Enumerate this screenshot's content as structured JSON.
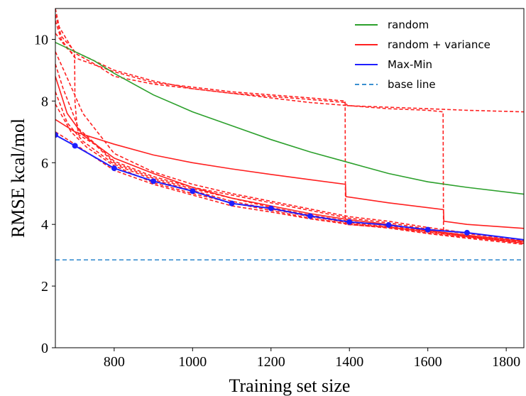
{
  "chart_data": {
    "type": "line",
    "xlabel": "Training set size",
    "ylabel": "RMSE kcal/mol",
    "xlim": [
      650,
      1845
    ],
    "ylim": [
      0,
      11
    ],
    "xticks": [
      800,
      1000,
      1200,
      1400,
      1600,
      1800
    ],
    "yticks": [
      0,
      2,
      4,
      6,
      8,
      10
    ],
    "grid": false,
    "legend_position": "top-right",
    "legend": [
      {
        "label": "random",
        "color": "#2ca02c",
        "style": "solid"
      },
      {
        "label": "random + variance",
        "color": "#ff2020",
        "style": "solid"
      },
      {
        "label": "Max-Min",
        "color": "#1f1fff",
        "style": "solid"
      },
      {
        "label": "base line",
        "color": "#3a8fd0",
        "style": "dashed"
      }
    ],
    "series": [
      {
        "name": "random",
        "color": "#2ca02c",
        "style": "solid",
        "points": [
          [
            650,
            9.9
          ],
          [
            700,
            9.6
          ],
          [
            750,
            9.3
          ],
          [
            800,
            8.9
          ],
          [
            900,
            8.2
          ],
          [
            1000,
            7.65
          ],
          [
            1100,
            7.2
          ],
          [
            1200,
            6.75
          ],
          [
            1300,
            6.35
          ],
          [
            1400,
            6.0
          ],
          [
            1500,
            5.65
          ],
          [
            1600,
            5.38
          ],
          [
            1700,
            5.2
          ],
          [
            1845,
            4.98
          ]
        ]
      },
      {
        "name": "random + variance",
        "color": "#ff2020",
        "style": "solid",
        "points": [
          [
            650,
            7.4
          ],
          [
            700,
            7.0
          ],
          [
            800,
            6.6
          ],
          [
            900,
            6.25
          ],
          [
            1000,
            6.0
          ],
          [
            1100,
            5.8
          ],
          [
            1200,
            5.62
          ],
          [
            1300,
            5.45
          ],
          [
            1390,
            5.3
          ],
          [
            1391,
            4.9
          ],
          [
            1500,
            4.7
          ],
          [
            1640,
            4.48
          ],
          [
            1641,
            4.1
          ],
          [
            1700,
            4.0
          ],
          [
            1845,
            3.87
          ]
        ]
      },
      {
        "name": "random + variance",
        "color": "#ff2020",
        "style": "solid",
        "points": [
          [
            650,
            8.8
          ],
          [
            680,
            7.6
          ],
          [
            720,
            6.9
          ],
          [
            800,
            6.15
          ],
          [
            900,
            5.65
          ],
          [
            1000,
            5.2
          ],
          [
            1100,
            4.85
          ],
          [
            1200,
            4.6
          ],
          [
            1300,
            4.35
          ],
          [
            1400,
            4.15
          ],
          [
            1500,
            4.0
          ],
          [
            1600,
            3.8
          ],
          [
            1700,
            3.65
          ],
          [
            1845,
            3.45
          ]
        ]
      },
      {
        "name": "Max-Min",
        "color": "#1f1fff",
        "style": "solid",
        "markers": true,
        "points": [
          [
            650,
            6.9
          ],
          [
            700,
            6.55
          ],
          [
            800,
            5.82
          ],
          [
            900,
            5.4
          ],
          [
            1000,
            5.08
          ],
          [
            1100,
            4.68
          ],
          [
            1200,
            4.52
          ],
          [
            1300,
            4.27
          ],
          [
            1400,
            4.08
          ],
          [
            1500,
            3.98
          ],
          [
            1600,
            3.83
          ],
          [
            1700,
            3.73
          ],
          [
            1845,
            3.5
          ]
        ],
        "marker_points": [
          [
            650,
            6.9
          ],
          [
            700,
            6.55
          ],
          [
            800,
            5.82
          ],
          [
            900,
            5.4
          ],
          [
            1000,
            5.08
          ],
          [
            1100,
            4.68
          ],
          [
            1200,
            4.52
          ],
          [
            1300,
            4.27
          ],
          [
            1400,
            4.08
          ],
          [
            1500,
            3.98
          ],
          [
            1600,
            3.83
          ],
          [
            1700,
            3.73
          ]
        ]
      },
      {
        "name": "base line",
        "color": "#3a8fd0",
        "style": "dashed",
        "points": [
          [
            650,
            2.85
          ],
          [
            1845,
            2.85
          ]
        ]
      },
      {
        "name": "random + variance",
        "color": "#ff2020",
        "style": "dashed",
        "points": [
          [
            650,
            11.0
          ],
          [
            660,
            10.4
          ],
          [
            700,
            9.55
          ],
          [
            750,
            9.2
          ],
          [
            800,
            8.8
          ],
          [
            900,
            8.55
          ],
          [
            1000,
            8.4
          ],
          [
            1100,
            8.25
          ],
          [
            1200,
            8.15
          ],
          [
            1300,
            8.05
          ],
          [
            1390,
            7.95
          ],
          [
            1395,
            7.85
          ],
          [
            1500,
            7.8
          ],
          [
            1600,
            7.75
          ],
          [
            1700,
            7.7
          ],
          [
            1845,
            7.65
          ]
        ]
      },
      {
        "name": "random + variance",
        "color": "#ff2020",
        "style": "dashed",
        "points": [
          [
            650,
            10.6
          ],
          [
            665,
            10.0
          ],
          [
            700,
            9.4
          ],
          [
            800,
            8.95
          ],
          [
            900,
            8.6
          ],
          [
            1000,
            8.45
          ],
          [
            1100,
            8.3
          ],
          [
            1200,
            8.2
          ],
          [
            1300,
            8.1
          ],
          [
            1389,
            8.0
          ],
          [
            1390,
            4.0
          ],
          [
            1500,
            3.9
          ],
          [
            1600,
            3.78
          ],
          [
            1700,
            3.62
          ],
          [
            1845,
            3.45
          ]
        ]
      },
      {
        "name": "random + variance",
        "color": "#ff2020",
        "style": "dashed",
        "points": [
          [
            650,
            10.8
          ],
          [
            665,
            10.1
          ],
          [
            700,
            9.6
          ],
          [
            800,
            9.0
          ],
          [
            900,
            8.65
          ],
          [
            1000,
            8.4
          ],
          [
            1100,
            8.25
          ],
          [
            1200,
            8.1
          ],
          [
            1300,
            7.95
          ],
          [
            1400,
            7.85
          ],
          [
            1500,
            7.75
          ],
          [
            1600,
            7.7
          ],
          [
            1639,
            7.65
          ],
          [
            1640,
            3.72
          ],
          [
            1700,
            3.62
          ],
          [
            1845,
            3.4
          ]
        ]
      },
      {
        "name": "random + variance",
        "color": "#ff2020",
        "style": "dashed",
        "points": [
          [
            650,
            10.2
          ],
          [
            680,
            9.7
          ],
          [
            699,
            9.5
          ],
          [
            700,
            8.0
          ],
          [
            705,
            7.2
          ],
          [
            710,
            6.9
          ],
          [
            750,
            6.6
          ],
          [
            800,
            6.0
          ],
          [
            900,
            5.5
          ],
          [
            1000,
            5.15
          ],
          [
            1100,
            4.85
          ],
          [
            1200,
            4.55
          ],
          [
            1300,
            4.3
          ],
          [
            1400,
            4.1
          ],
          [
            1500,
            3.95
          ],
          [
            1600,
            3.78
          ],
          [
            1700,
            3.62
          ],
          [
            1845,
            3.42
          ]
        ]
      },
      {
        "name": "random + variance",
        "color": "#ff2020",
        "style": "dashed",
        "points": [
          [
            650,
            9.2
          ],
          [
            670,
            8.4
          ],
          [
            710,
            7.1
          ],
          [
            800,
            6.05
          ],
          [
            900,
            5.55
          ],
          [
            1000,
            5.2
          ],
          [
            1100,
            4.95
          ],
          [
            1200,
            4.7
          ],
          [
            1300,
            4.45
          ],
          [
            1400,
            4.2
          ],
          [
            1500,
            4.05
          ],
          [
            1600,
            3.85
          ],
          [
            1700,
            3.7
          ],
          [
            1845,
            3.48
          ]
        ]
      },
      {
        "name": "random + variance",
        "color": "#ff2020",
        "style": "dashed",
        "points": [
          [
            650,
            8.3
          ],
          [
            680,
            7.3
          ],
          [
            720,
            6.7
          ],
          [
            800,
            5.95
          ],
          [
            900,
            5.45
          ],
          [
            1000,
            5.1
          ],
          [
            1100,
            4.75
          ],
          [
            1200,
            4.5
          ],
          [
            1300,
            4.25
          ],
          [
            1400,
            4.05
          ],
          [
            1500,
            3.92
          ],
          [
            1600,
            3.75
          ],
          [
            1700,
            3.6
          ],
          [
            1845,
            3.38
          ]
        ]
      },
      {
        "name": "random + variance",
        "color": "#ff2020",
        "style": "dashed",
        "points": [
          [
            650,
            7.9
          ],
          [
            690,
            7.0
          ],
          [
            730,
            6.5
          ],
          [
            800,
            5.9
          ],
          [
            900,
            5.35
          ],
          [
            1000,
            5.0
          ],
          [
            1100,
            4.7
          ],
          [
            1200,
            4.45
          ],
          [
            1300,
            4.2
          ],
          [
            1400,
            4.02
          ],
          [
            1500,
            3.9
          ],
          [
            1600,
            3.72
          ],
          [
            1700,
            3.58
          ],
          [
            1845,
            3.4
          ]
        ]
      },
      {
        "name": "random + variance",
        "color": "#ff2020",
        "style": "dashed",
        "points": [
          [
            650,
            7.0
          ],
          [
            700,
            6.6
          ],
          [
            800,
            5.75
          ],
          [
            900,
            5.3
          ],
          [
            1000,
            4.95
          ],
          [
            1100,
            4.6
          ],
          [
            1200,
            4.4
          ],
          [
            1300,
            4.18
          ],
          [
            1400,
            4.0
          ],
          [
            1500,
            3.88
          ],
          [
            1600,
            3.7
          ],
          [
            1700,
            3.55
          ],
          [
            1845,
            3.35
          ]
        ]
      },
      {
        "name": "random + variance",
        "color": "#ff2020",
        "style": "dashed",
        "points": [
          [
            650,
            9.6
          ],
          [
            675,
            8.9
          ],
          [
            720,
            7.6
          ],
          [
            800,
            6.3
          ],
          [
            900,
            5.7
          ],
          [
            1000,
            5.3
          ],
          [
            1100,
            5.0
          ],
          [
            1200,
            4.75
          ],
          [
            1300,
            4.5
          ],
          [
            1400,
            4.25
          ],
          [
            1500,
            4.1
          ],
          [
            1600,
            3.9
          ],
          [
            1700,
            3.72
          ],
          [
            1845,
            3.5
          ]
        ]
      }
    ]
  }
}
